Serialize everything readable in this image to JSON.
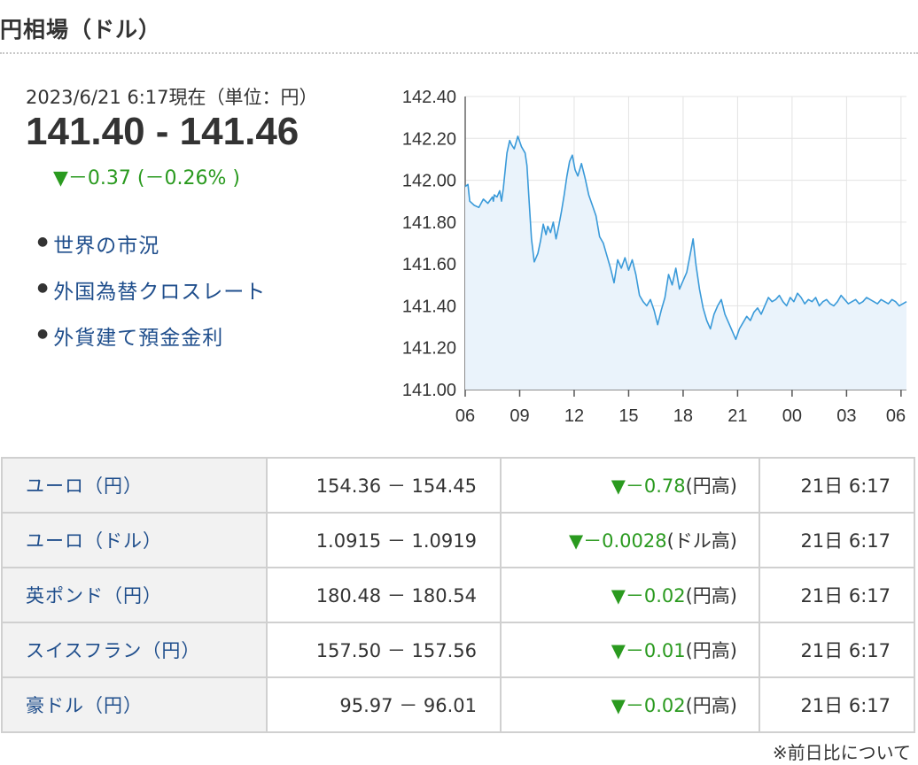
{
  "header": {
    "title": "円相場（ドル）"
  },
  "quote": {
    "timestamp": "2023/6/21 6:17現在（単位：円）",
    "price": "141.40 - 141.46",
    "change": "▼－0.37 (－0.26% )"
  },
  "links": [
    {
      "label": "世界の市況"
    },
    {
      "label": "外国為替クロスレート"
    },
    {
      "label": "外貨建て預金金利"
    }
  ],
  "chart_data": {
    "type": "line",
    "ylim": [
      141.0,
      142.4
    ],
    "y_ticks": [
      "142.40",
      "142.20",
      "142.00",
      "141.80",
      "141.60",
      "141.40",
      "141.20",
      "141.00"
    ],
    "x_ticks": [
      "06",
      "09",
      "12",
      "15",
      "18",
      "21",
      "00",
      "03",
      "06"
    ],
    "grid": true,
    "series_color": "#3a9ad9",
    "fill_color": "#eaf3fb",
    "series": [
      {
        "x": [
          0,
          0.3,
          0.5,
          1.0,
          1.5,
          2.0,
          2.5,
          3.0,
          3.1,
          3.2,
          3.5,
          3.8,
          4.0,
          4.2,
          4.6,
          4.9,
          5.1,
          5.4,
          5.8,
          6.2,
          6.6,
          6.8,
          7.0,
          7.3,
          7.6,
          8.0,
          8.3,
          8.6,
          8.9,
          9.1,
          9.4,
          9.7,
          10.0,
          10.3,
          10.6,
          10.9,
          11.2,
          11.5,
          11.8,
          12.1,
          12.4,
          12.8,
          13.2,
          13.6,
          14.0,
          14.4,
          14.8,
          15.2,
          15.6,
          16.0,
          16.4,
          16.8,
          17.2,
          17.6,
          18.0,
          18.4,
          18.8,
          19.2,
          19.6,
          20.0,
          20.4,
          20.8,
          21.2,
          21.6,
          22.0,
          22.4,
          22.8,
          23.2,
          23.6,
          24.0,
          24.4,
          24.8,
          25.1,
          25.4,
          25.8,
          26.2,
          26.6,
          27.0,
          27.4,
          27.8,
          28.2,
          28.6,
          29.0,
          29.4,
          29.8,
          30.2,
          30.6,
          31.0,
          31.4,
          31.8,
          32.2,
          32.6,
          33.0,
          33.4,
          33.8,
          34.2,
          34.6,
          35.0,
          35.4,
          35.8,
          36.2,
          36.6,
          37.0,
          37.4,
          37.8,
          38.2,
          38.6,
          39.0,
          39.4,
          39.8,
          40.2,
          40.6,
          41.0,
          41.4,
          41.8,
          42.2,
          42.6,
          43.0,
          43.4,
          43.8,
          44.2,
          44.6,
          45.0,
          45.4,
          45.8,
          46.2,
          46.6,
          47.0,
          47.4,
          47.8,
          48.2,
          48.6
        ],
        "values": [
          141.97,
          141.98,
          141.9,
          141.88,
          141.87,
          141.91,
          141.89,
          141.92,
          141.9,
          141.93,
          141.92,
          141.95,
          141.9,
          141.96,
          142.13,
          142.19,
          142.17,
          142.15,
          142.21,
          142.16,
          142.13,
          142.07,
          141.93,
          141.72,
          141.61,
          141.65,
          141.71,
          141.79,
          141.74,
          141.78,
          141.75,
          141.8,
          141.72,
          141.78,
          141.85,
          141.93,
          142.02,
          142.09,
          142.12,
          142.05,
          142.02,
          142.08,
          142.01,
          141.93,
          141.88,
          141.83,
          141.73,
          141.7,
          141.64,
          141.58,
          141.51,
          141.62,
          141.58,
          141.63,
          141.57,
          141.62,
          141.55,
          141.45,
          141.42,
          141.4,
          141.43,
          141.38,
          141.31,
          141.38,
          141.44,
          141.55,
          141.5,
          141.58,
          141.48,
          141.52,
          141.56,
          141.65,
          141.72,
          141.6,
          141.48,
          141.39,
          141.33,
          141.29,
          141.36,
          141.4,
          141.43,
          141.36,
          141.32,
          141.28,
          141.24,
          141.29,
          141.32,
          141.35,
          141.33,
          141.37,
          141.39,
          141.36,
          141.4,
          141.44,
          141.42,
          141.43,
          141.45,
          141.42,
          141.4,
          141.44,
          141.42,
          141.46,
          141.44,
          141.41,
          141.43,
          141.42,
          141.44,
          141.4,
          141.42,
          141.43,
          141.41,
          141.4,
          141.42,
          141.45,
          141.43,
          141.41,
          141.42,
          141.43,
          141.41,
          141.42,
          141.44,
          141.43,
          141.42,
          141.41,
          141.43,
          141.42,
          141.41,
          141.43,
          141.42,
          141.4,
          141.41,
          141.42
        ]
      }
    ]
  },
  "rates": {
    "rows": [
      {
        "name": "ユーロ（円）",
        "price": "154.36 － 154.45",
        "change": "▼－0.78",
        "change_note": "(円高)",
        "time": "21日 6:17"
      },
      {
        "name": "ユーロ（ドル）",
        "price": "1.0915 － 1.0919",
        "change": "▼－0.0028",
        "change_note": "(ドル高)",
        "time": "21日 6:17"
      },
      {
        "name": "英ポンド（円）",
        "price": "180.48 － 180.54",
        "change": "▼－0.02",
        "change_note": "(円高)",
        "time": "21日 6:17"
      },
      {
        "name": "スイスフラン（円）",
        "price": "157.50 － 157.56",
        "change": "▼－0.01",
        "change_note": "(円高)",
        "time": "21日 6:17"
      },
      {
        "name": "豪ドル（円）",
        "price": "95.97 － 96.01",
        "change": "▼－0.02",
        "change_note": "(円高)",
        "time": "21日 6:17"
      }
    ]
  },
  "footnote": {
    "label": "※前日比について"
  }
}
